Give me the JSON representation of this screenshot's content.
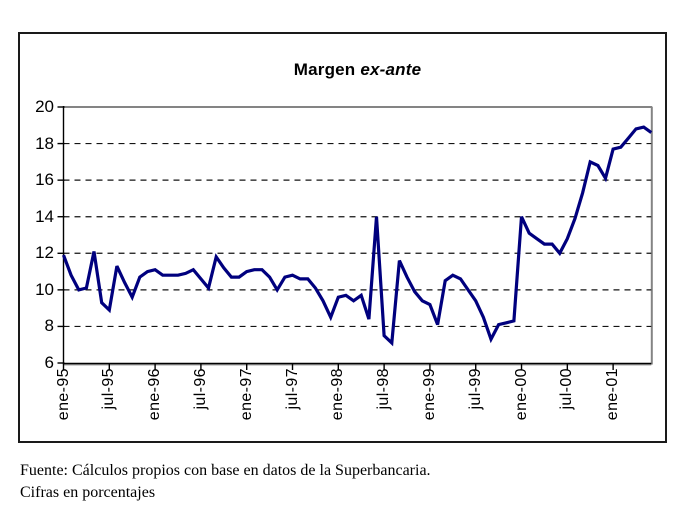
{
  "footer": {
    "line1": "Fuente: Cálculos propios con base en datos de la Superbancaria.",
    "line2": "Cifras en porcentajes"
  },
  "chart_data": {
    "type": "line",
    "title": "Margen ex-ante",
    "title_main": "Margen ",
    "title_italic": "ex-ante",
    "ylabel": "",
    "xlabel": "",
    "ylim": [
      6,
      20
    ],
    "yticks": [
      6,
      8,
      10,
      12,
      14,
      16,
      18,
      20
    ],
    "grid": "horizontal dashed at 8,10,12,14,16,18; solid gray plot border at top/right",
    "legend": "none",
    "line_color": "#00007E",
    "x_tick_labels": [
      "ene-95",
      "jul-95",
      "ene-96",
      "jul-96",
      "ene-97",
      "jul-97",
      "ene-98",
      "jul-98",
      "ene-99",
      "jul-99",
      "ene-00",
      "jul-00",
      "ene-01"
    ],
    "x_tick_every": 6,
    "categories": [
      "ene-95",
      "feb-95",
      "mar-95",
      "abr-95",
      "may-95",
      "jun-95",
      "jul-95",
      "ago-95",
      "sep-95",
      "oct-95",
      "nov-95",
      "dic-95",
      "ene-96",
      "feb-96",
      "mar-96",
      "abr-96",
      "may-96",
      "jun-96",
      "jul-96",
      "ago-96",
      "sep-96",
      "oct-96",
      "nov-96",
      "dic-96",
      "ene-97",
      "feb-97",
      "mar-97",
      "abr-97",
      "may-97",
      "jun-97",
      "jul-97",
      "ago-97",
      "sep-97",
      "oct-97",
      "nov-97",
      "dic-97",
      "ene-98",
      "feb-98",
      "mar-98",
      "abr-98",
      "may-98",
      "jun-98",
      "jul-98",
      "ago-98",
      "sep-98",
      "oct-98",
      "nov-98",
      "dic-98",
      "ene-99",
      "feb-99",
      "mar-99",
      "abr-99",
      "may-99",
      "jun-99",
      "jul-99",
      "ago-99",
      "sep-99",
      "oct-99",
      "nov-99",
      "dic-99",
      "ene-00",
      "feb-00",
      "mar-00",
      "abr-00",
      "may-00",
      "jun-00",
      "jul-00",
      "ago-00",
      "sep-00",
      "oct-00",
      "nov-00",
      "dic-00",
      "ene-01",
      "feb-01",
      "mar-01",
      "abr-01",
      "may-01",
      "jun-01"
    ],
    "series": [
      {
        "name": "Margen ex-ante",
        "values": [
          11.9,
          10.8,
          10.0,
          10.1,
          12.1,
          9.3,
          8.9,
          11.3,
          10.4,
          9.6,
          10.7,
          11.0,
          11.1,
          10.8,
          10.8,
          10.8,
          10.9,
          11.1,
          10.6,
          10.1,
          11.8,
          11.2,
          10.7,
          10.7,
          11.0,
          11.1,
          11.1,
          10.7,
          10.0,
          10.7,
          10.8,
          10.6,
          10.6,
          10.1,
          9.4,
          8.5,
          9.6,
          9.7,
          9.4,
          9.7,
          8.4,
          14.0,
          7.5,
          7.1,
          11.6,
          10.7,
          9.9,
          9.4,
          9.2,
          8.1,
          10.5,
          10.8,
          10.6,
          10.0,
          9.4,
          8.5,
          7.3,
          8.1,
          8.2,
          8.3,
          14.0,
          13.1,
          12.8,
          12.5,
          12.5,
          12.0,
          12.8,
          13.9,
          15.3,
          17.0,
          16.8,
          16.1,
          17.7,
          17.8,
          18.3,
          18.8,
          18.9,
          18.6
        ]
      }
    ]
  }
}
